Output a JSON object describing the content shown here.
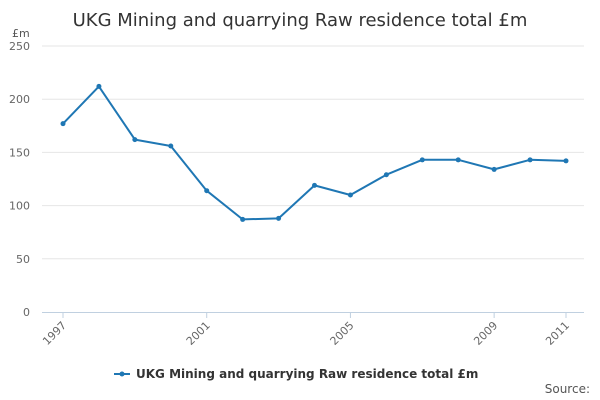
{
  "chart_data": {
    "type": "line",
    "title": "UKG Mining and quarrying Raw residence total £m",
    "ylabel": "£m",
    "xlabel": "",
    "ylim": [
      0,
      250
    ],
    "yticks": [
      0,
      50,
      100,
      150,
      200,
      250
    ],
    "xlim": [
      1997,
      2011
    ],
    "xticks": [
      1997,
      2001,
      2005,
      2009,
      2011
    ],
    "x": [
      1997,
      1998,
      1999,
      2000,
      2001,
      2002,
      2003,
      2004,
      2005,
      2006,
      2007,
      2008,
      2009,
      2010,
      2011
    ],
    "series": [
      {
        "name": "UKG Mining and quarrying Raw residence total £m",
        "color": "#1f77b4",
        "values": [
          177,
          212,
          162,
          156,
          114,
          87,
          88,
          119,
          110,
          129,
          143,
          143,
          134,
          143,
          142
        ]
      }
    ],
    "grid": true,
    "legend_position": "bottom-center",
    "source_label": "Source:"
  }
}
